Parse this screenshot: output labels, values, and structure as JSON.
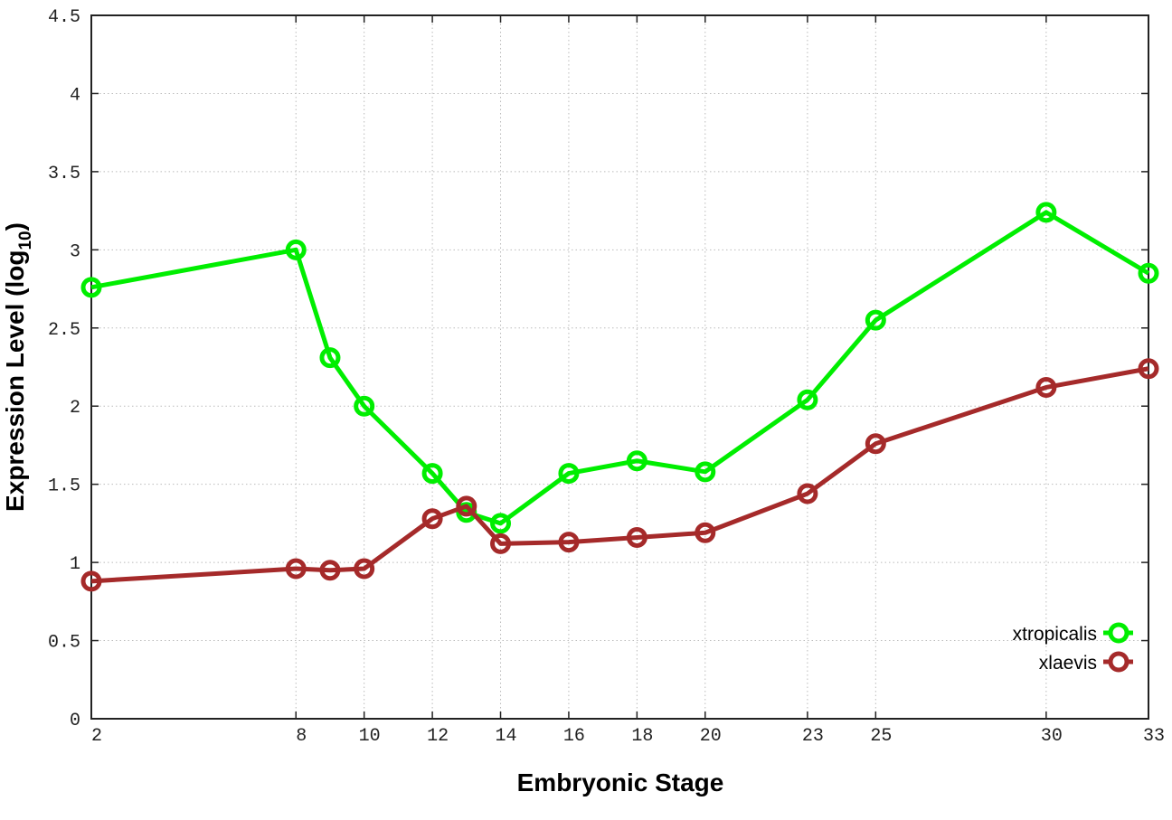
{
  "chart_data": {
    "type": "line",
    "title": "",
    "xlabel": "Embryonic Stage",
    "ylabel": "Expression Level (log10)",
    "xlim": [
      2,
      33
    ],
    "ylim": [
      0,
      4.5
    ],
    "x_ticks": [
      2,
      8,
      10,
      12,
      14,
      16,
      18,
      20,
      23,
      25,
      30,
      33
    ],
    "y_ticks": [
      "0",
      "0.5",
      "1",
      "1.5",
      "2",
      "2.5",
      "3",
      "3.5",
      "4",
      "4.5"
    ],
    "grid": true,
    "legend_position": "bottom-right",
    "x": [
      2,
      8,
      9,
      10,
      12,
      13,
      14,
      16,
      18,
      20,
      23,
      25,
      30,
      33
    ],
    "series": [
      {
        "name": "xtropicalis",
        "color": "#00ee00",
        "values": [
          2.76,
          3.0,
          2.31,
          2.0,
          1.57,
          1.32,
          1.25,
          1.57,
          1.65,
          1.58,
          2.04,
          2.55,
          3.24,
          2.85
        ]
      },
      {
        "name": "xlaevis",
        "color": "#a52a2a",
        "values": [
          0.88,
          0.96,
          0.95,
          0.96,
          1.28,
          1.36,
          1.12,
          1.13,
          1.16,
          1.19,
          1.44,
          1.76,
          2.12,
          2.24
        ]
      }
    ]
  }
}
